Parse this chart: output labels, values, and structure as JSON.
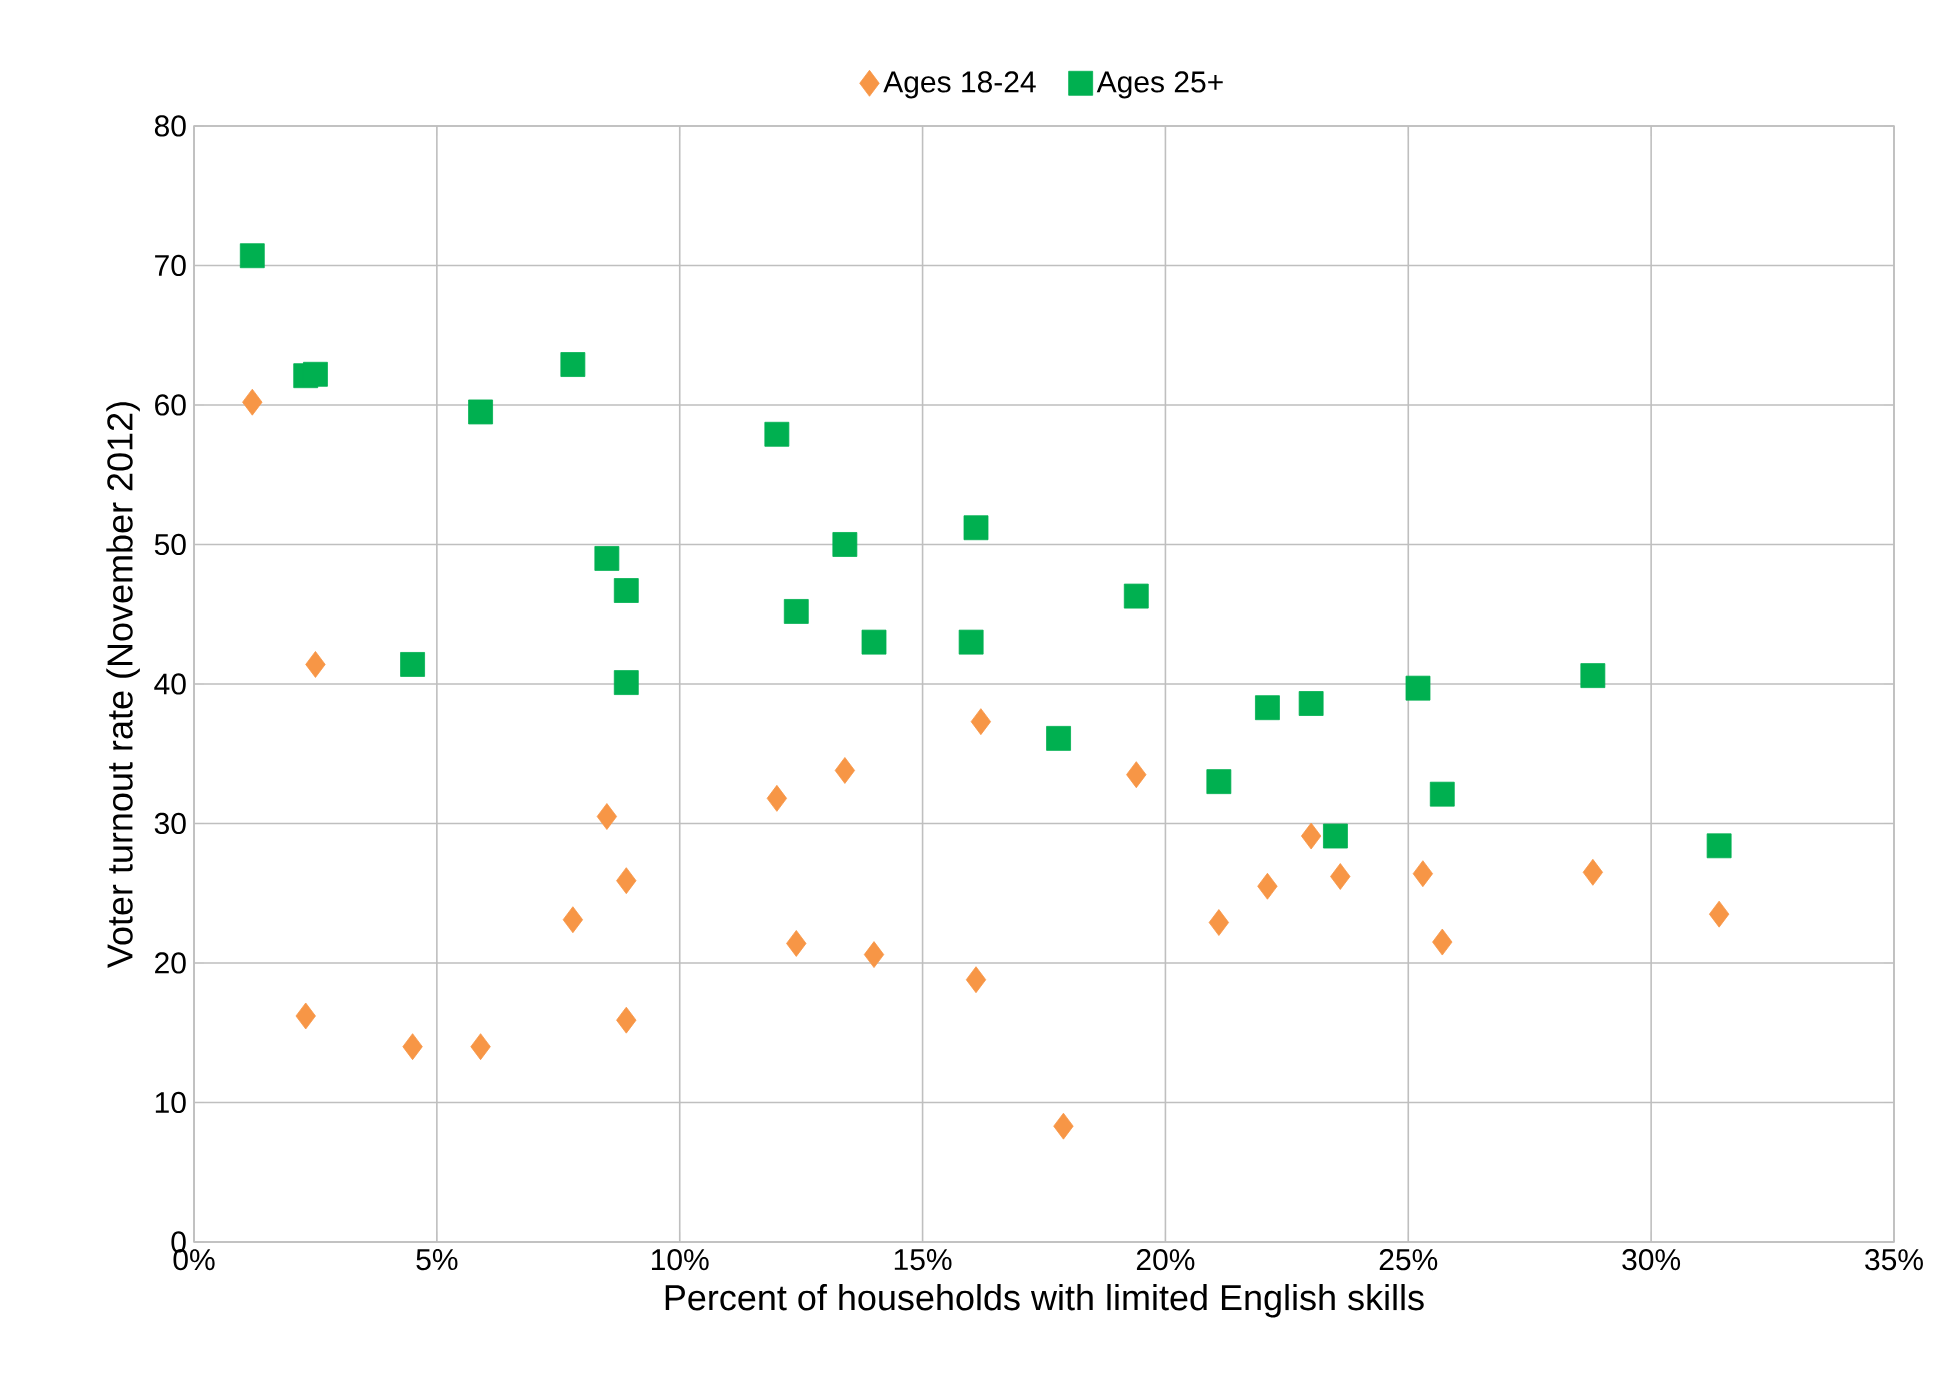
{
  "chart_data": {
    "type": "scatter",
    "xlabel": "Percent of households with limited English skills",
    "ylabel": "Voter turnout rate (November 2012)",
    "xlim": [
      0,
      35
    ],
    "ylim": [
      0,
      80
    ],
    "xticks": [
      {
        "value": 0,
        "label": "0%"
      },
      {
        "value": 5,
        "label": "5%"
      },
      {
        "value": 10,
        "label": "10%"
      },
      {
        "value": 15,
        "label": "15%"
      },
      {
        "value": 20,
        "label": "20%"
      },
      {
        "value": 25,
        "label": "25%"
      },
      {
        "value": 30,
        "label": "30%"
      },
      {
        "value": 35,
        "label": "35%"
      }
    ],
    "yticks": [
      0,
      10,
      20,
      30,
      40,
      50,
      60,
      70,
      80
    ],
    "grid": true,
    "legend": "top",
    "series": [
      {
        "name": "Ages 18-24",
        "color": "#f79646",
        "marker": "diamond",
        "x": [
          1.2,
          2.3,
          2.5,
          4.5,
          5.9,
          7.8,
          8.5,
          8.9,
          8.9,
          12.0,
          12.4,
          13.4,
          14.0,
          16.1,
          16.2,
          17.9,
          19.4,
          21.1,
          22.1,
          23.0,
          23.6,
          25.3,
          25.7,
          28.8,
          31.4
        ],
        "values": [
          60.2,
          16.2,
          41.4,
          14.0,
          14.0,
          23.1,
          30.5,
          25.9,
          15.9,
          31.8,
          21.4,
          33.8,
          20.6,
          18.8,
          37.3,
          8.3,
          33.5,
          22.9,
          25.5,
          29.1,
          26.2,
          26.4,
          21.5,
          26.5,
          23.5
        ]
      },
      {
        "name": "Ages 25+",
        "color": "#00b050",
        "marker": "square",
        "x": [
          1.2,
          2.3,
          2.5,
          4.5,
          5.9,
          7.8,
          8.5,
          8.9,
          8.9,
          12.0,
          12.4,
          13.4,
          14.0,
          16.0,
          16.1,
          17.8,
          19.4,
          21.1,
          22.1,
          23.0,
          23.5,
          25.2,
          25.7,
          28.8,
          31.4
        ],
        "values": [
          70.7,
          62.1,
          62.2,
          41.4,
          59.5,
          62.9,
          49.0,
          46.7,
          40.1,
          57.9,
          45.2,
          50.0,
          43.0,
          43.0,
          51.2,
          36.1,
          46.3,
          33.0,
          38.3,
          38.6,
          29.1,
          39.7,
          32.1,
          40.6,
          28.4
        ]
      }
    ]
  }
}
